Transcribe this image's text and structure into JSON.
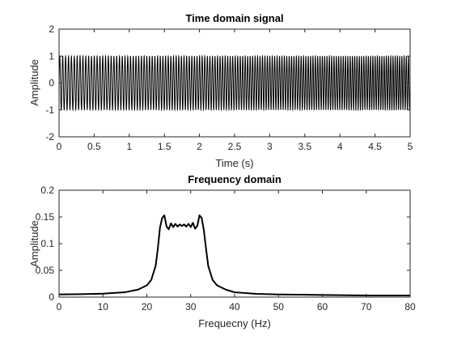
{
  "chart_data": [
    {
      "type": "line",
      "title": "Time domain signal",
      "xlabel": "Time (s)",
      "ylabel": "Amplitude",
      "xlim": [
        0,
        5
      ],
      "ylim": [
        -2,
        2
      ],
      "xticks": [
        "0",
        "0.5",
        "1",
        "1.5",
        "2",
        "2.5",
        "3",
        "3.5",
        "4",
        "4.5",
        "5"
      ],
      "yticks": [
        "-2",
        "-1",
        "0",
        "1",
        "2"
      ],
      "grid": false,
      "line_color": "#000000",
      "description": "Dense chirp-like oscillation with amplitude 1, frequency sweeping roughly 24 to 32 Hz over 0 to 5 s",
      "signal": {
        "amplitude": 1,
        "f_start_hz": 24,
        "f_end_hz": 32,
        "duration_s": 5
      }
    },
    {
      "type": "line",
      "title": "Frequency domain",
      "xlabel": "Frequecny (Hz)",
      "ylabel": "Amplitude",
      "xlim": [
        0,
        80
      ],
      "ylim": [
        0,
        0.2
      ],
      "xticks": [
        "0",
        "10",
        "20",
        "30",
        "40",
        "50",
        "60",
        "70",
        "80"
      ],
      "yticks": [
        "0",
        "0.05",
        "0.1",
        "0.15",
        "0.2"
      ],
      "grid": false,
      "line_color": "#000000",
      "x": [
        0,
        5,
        10,
        15,
        18,
        20,
        21,
        22,
        22.5,
        23,
        23.5,
        24,
        24.5,
        25,
        25.5,
        26,
        26.5,
        27,
        27.5,
        28,
        28.5,
        29,
        29.5,
        30,
        30.5,
        31,
        31.5,
        32,
        32.5,
        33,
        33.5,
        34,
        35,
        36,
        38,
        40,
        45,
        50,
        60,
        70,
        80
      ],
      "values": [
        0.005,
        0.0055,
        0.0065,
        0.009,
        0.014,
        0.022,
        0.032,
        0.058,
        0.09,
        0.13,
        0.148,
        0.153,
        0.132,
        0.127,
        0.138,
        0.131,
        0.137,
        0.132,
        0.136,
        0.133,
        0.136,
        0.132,
        0.137,
        0.131,
        0.139,
        0.128,
        0.133,
        0.153,
        0.148,
        0.125,
        0.09,
        0.058,
        0.032,
        0.022,
        0.014,
        0.009,
        0.006,
        0.005,
        0.004,
        0.003,
        0.003
      ]
    }
  ]
}
